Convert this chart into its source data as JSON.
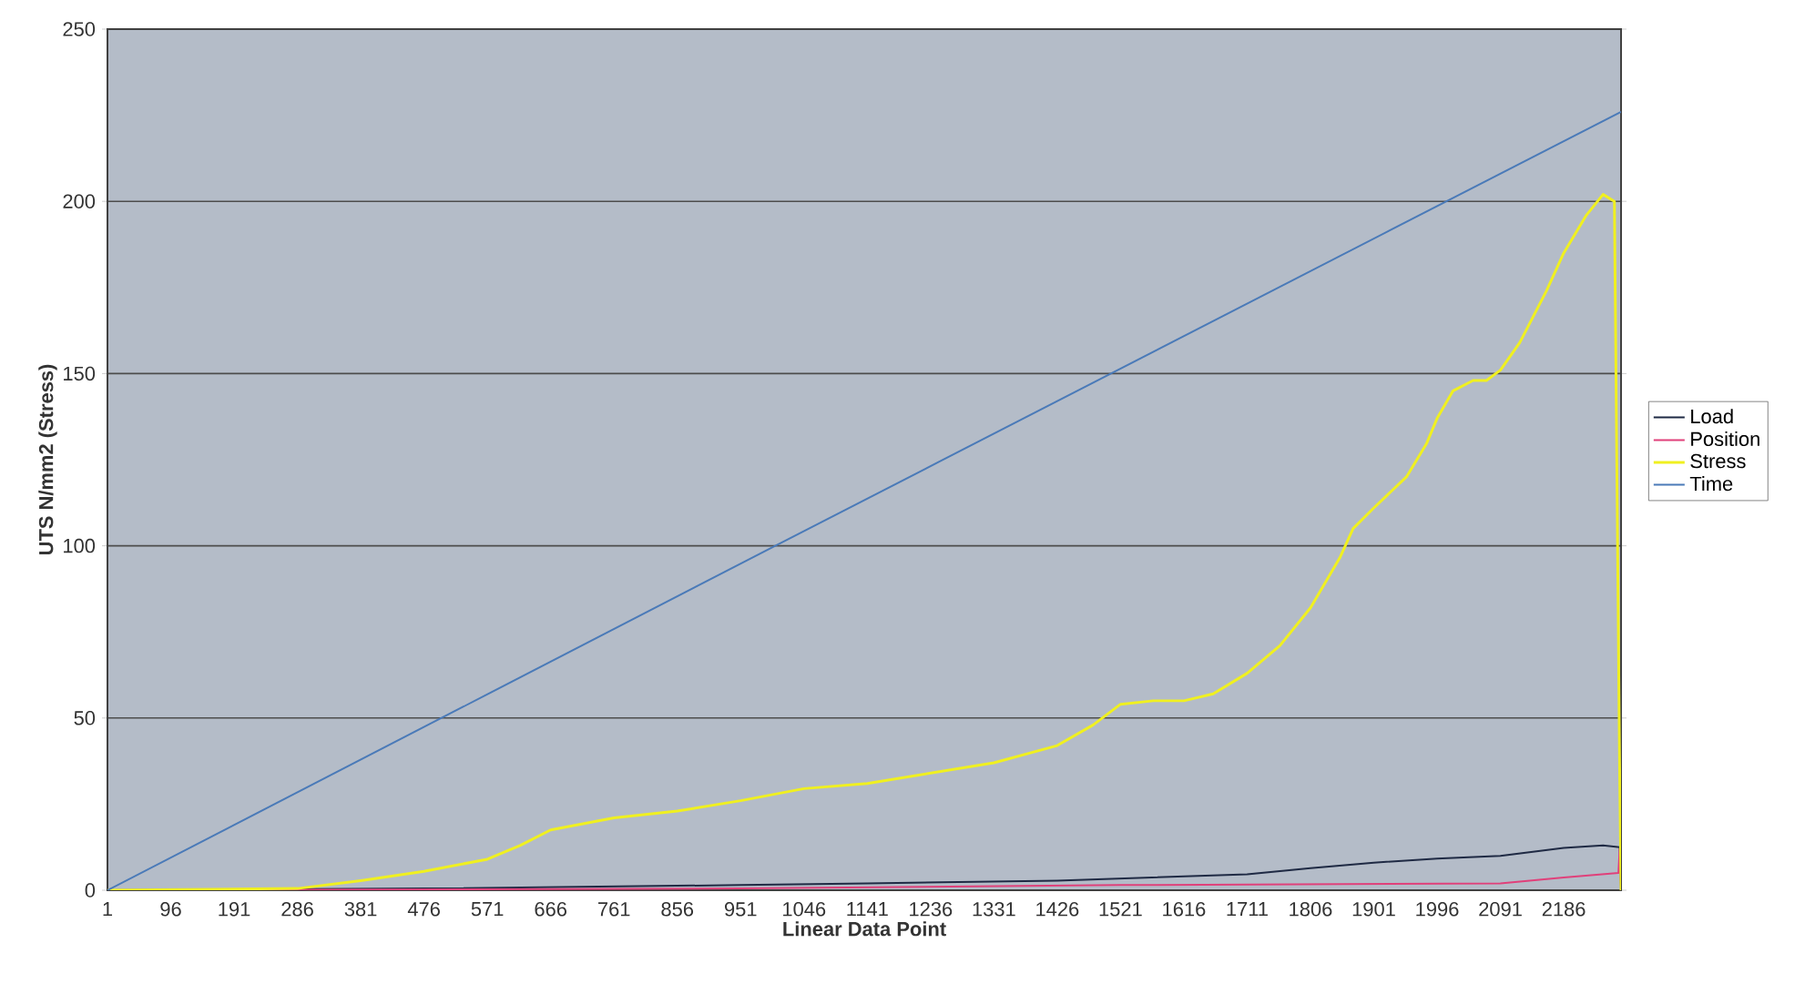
{
  "chart_data": {
    "type": "line",
    "xlabel": "Linear Data Point",
    "ylabel": "UTS N/mm2 (Stress)",
    "xlim": [
      1,
      2272
    ],
    "ylim": [
      0,
      250
    ],
    "xticks": [
      1,
      96,
      191,
      286,
      381,
      476,
      571,
      666,
      761,
      856,
      951,
      1046,
      1141,
      1236,
      1331,
      1426,
      1521,
      1616,
      1711,
      1806,
      1901,
      1996,
      2091,
      2186
    ],
    "yticks": [
      0,
      50,
      100,
      150,
      200,
      250
    ],
    "grid": "y",
    "legend": "right",
    "series": [
      {
        "name": "Load",
        "color": "#1f2a44",
        "x": [
          1,
          476,
          951,
          1141,
          1426,
          1711,
          1806,
          1901,
          1996,
          2091,
          2186,
          2245,
          2270,
          2272
        ],
        "values": [
          0,
          0.5,
          1.5,
          2,
          2.8,
          4.6,
          6.4,
          8,
          9.2,
          10,
          12.3,
          13,
          12.5,
          0
        ]
      },
      {
        "name": "Position",
        "color": "#e0407a",
        "x": [
          1,
          951,
          1521,
          2091,
          2186,
          2268,
          2270,
          2272
        ],
        "values": [
          0,
          0.5,
          1.5,
          2,
          3.7,
          5,
          12,
          0
        ]
      },
      {
        "name": "Stress",
        "color": "#f0f020",
        "x": [
          1,
          286,
          381,
          476,
          571,
          620,
          666,
          761,
          856,
          951,
          1046,
          1141,
          1236,
          1331,
          1426,
          1480,
          1521,
          1570,
          1616,
          1660,
          1711,
          1760,
          1806,
          1850,
          1870,
          1901,
          1950,
          1980,
          1996,
          2020,
          2050,
          2070,
          2091,
          2120,
          2160,
          2186,
          2220,
          2245,
          2262,
          2270,
          2272
        ],
        "values": [
          0,
          0.5,
          2.8,
          5.5,
          9,
          13,
          17.5,
          21,
          23,
          26,
          29.5,
          31,
          34,
          37,
          42,
          48,
          54,
          55,
          55,
          57,
          63,
          71,
          82,
          96.5,
          105,
          111,
          120,
          129.6,
          137,
          145,
          148,
          148,
          151,
          159,
          174,
          185,
          196,
          202,
          200,
          33,
          0
        ]
      },
      {
        "name": "Time",
        "color": "#4a7ab8",
        "x": [
          1,
          1003,
          2272
        ],
        "values": [
          0,
          100,
          226
        ]
      }
    ]
  }
}
